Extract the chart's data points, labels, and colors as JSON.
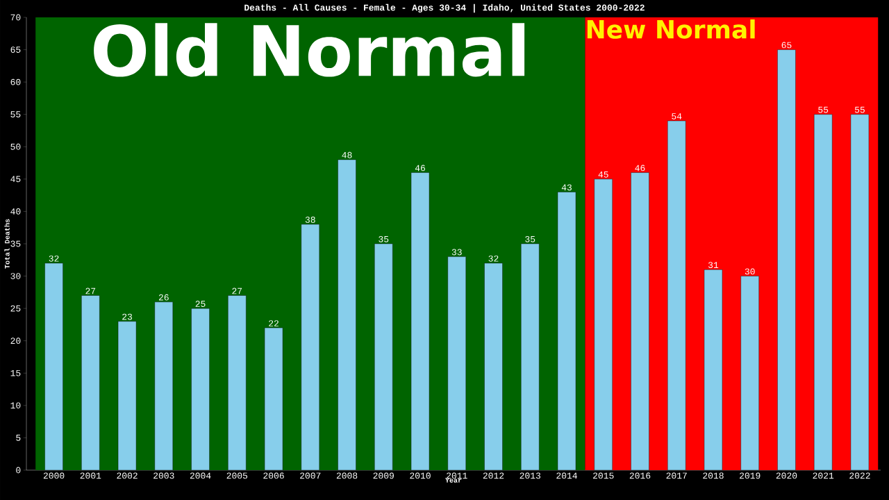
{
  "chart_data": {
    "type": "bar",
    "title": "Deaths - All Causes - Female - Ages 30-34 | Idaho, United States 2000-2022",
    "xlabel": "Year",
    "ylabel": "Total Deaths",
    "categories": [
      "2000",
      "2001",
      "2002",
      "2003",
      "2004",
      "2005",
      "2006",
      "2007",
      "2008",
      "2009",
      "2010",
      "2011",
      "2012",
      "2013",
      "2014",
      "2015",
      "2016",
      "2017",
      "2018",
      "2019",
      "2020",
      "2021",
      "2022"
    ],
    "values": [
      32,
      27,
      23,
      26,
      25,
      27,
      22,
      38,
      48,
      35,
      46,
      33,
      32,
      35,
      43,
      45,
      46,
      54,
      31,
      30,
      65,
      55,
      55
    ],
    "color": "#87ceeb",
    "ylim": [
      0,
      70
    ],
    "yticks": [
      0,
      5,
      10,
      15,
      20,
      25,
      30,
      35,
      40,
      45,
      50,
      55,
      60,
      65,
      70
    ],
    "bands": [
      {
        "axis": "x",
        "from": "2000",
        "to": "2014",
        "label": "Old Normal",
        "color": "#006400"
      },
      {
        "axis": "x",
        "from": "2015",
        "to": "2022",
        "label": "New Normal",
        "color": "#ff0000"
      }
    ],
    "data_labels": true,
    "grid": false
  }
}
